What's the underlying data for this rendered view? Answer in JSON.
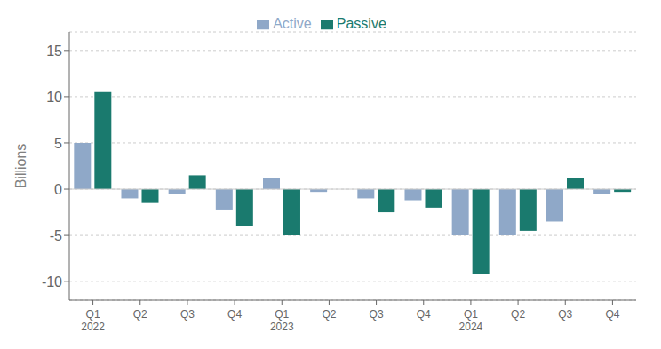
{
  "chart_data": {
    "type": "bar",
    "ylabel": "Billions",
    "categories": [
      "Q1\n2022",
      "Q2",
      "Q3",
      "Q4",
      "Q1\n2023",
      "Q2",
      "Q3",
      "Q4",
      "Q1\n2024",
      "Q2",
      "Q3",
      "Q4"
    ],
    "series": [
      {
        "name": "Active",
        "color": "#8fa8c8",
        "values": [
          5.0,
          -1.0,
          -0.5,
          -2.2,
          1.2,
          -0.3,
          -1.0,
          -1.2,
          -5.0,
          -5.0,
          -3.5,
          -0.5
        ]
      },
      {
        "name": "Passive",
        "color": "#1a7a6e",
        "values": [
          10.5,
          -1.5,
          1.5,
          -4.0,
          -5.0,
          0.0,
          -2.5,
          -2.0,
          -9.2,
          -4.5,
          1.2,
          -0.3
        ]
      }
    ],
    "ylim": [
      -12,
      17
    ],
    "yticks": [
      -10,
      -5,
      0,
      5,
      10,
      15
    ],
    "grid": true,
    "legend": "top"
  }
}
